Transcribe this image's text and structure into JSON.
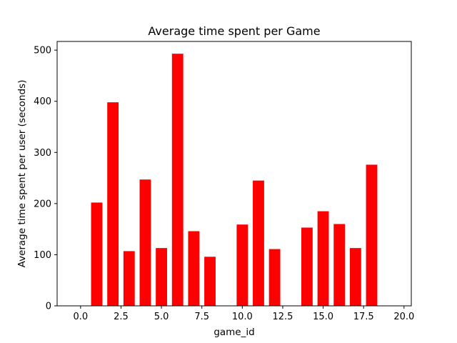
{
  "chart_data": {
    "type": "bar",
    "title": "Average time spent per Game",
    "xlabel": "game_id",
    "ylabel": "Average time spent per user (seconds)",
    "x": [
      1,
      2,
      3,
      4,
      5,
      6,
      7,
      8,
      10,
      11,
      12,
      14,
      15,
      16,
      17,
      18
    ],
    "values": [
      202,
      398,
      107,
      247,
      113,
      493,
      146,
      96,
      159,
      245,
      111,
      153,
      185,
      160,
      113,
      276
    ],
    "xlim": [
      -1.45,
      20.45
    ],
    "ylim": [
      0,
      517
    ],
    "xticks": [
      0,
      2.5,
      5,
      7.5,
      10,
      12.5,
      15,
      17.5,
      20
    ],
    "xtick_labels": [
      "0.0",
      "2.5",
      "5.0",
      "7.5",
      "10.0",
      "12.5",
      "15.0",
      "17.5",
      "20.0"
    ],
    "yticks": [
      0,
      100,
      200,
      300,
      400,
      500
    ],
    "ytick_labels": [
      "0",
      "100",
      "200",
      "300",
      "400",
      "500"
    ],
    "bar_width": 0.7,
    "bar_color": "#ff0000",
    "grid": false,
    "legend": "none"
  }
}
